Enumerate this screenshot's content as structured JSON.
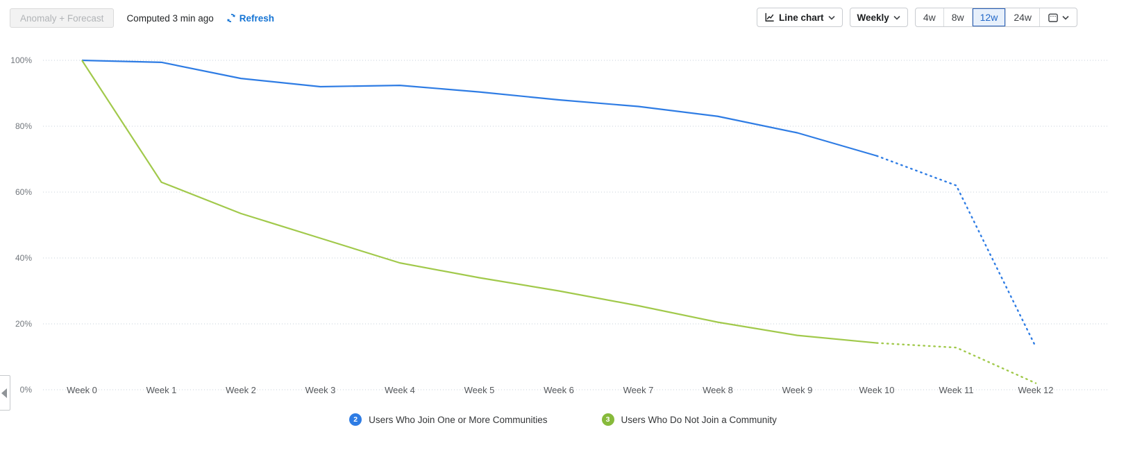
{
  "header": {
    "anomaly_button_label": "Anomaly + Forecast",
    "computed_text": "Computed 3 min ago",
    "refresh_label": "Refresh",
    "chart_type_label": "Line chart",
    "interval_label": "Weekly",
    "ranges": [
      "4w",
      "8w",
      "12w",
      "24w"
    ],
    "selected_range": "12w"
  },
  "colors": {
    "accent_blue": "#1574d4",
    "selected_range_bg": "#e7f0fb",
    "selected_range_border": "#2a61ba",
    "grid": "#c6cfd8"
  },
  "chart_data": {
    "type": "line",
    "title": "",
    "xlabel": "",
    "ylabel": "",
    "x": [
      "Week 0",
      "Week 1",
      "Week 2",
      "Week 3",
      "Week 4",
      "Week 5",
      "Week 6",
      "Week 7",
      "Week 8",
      "Week 9",
      "Week 10",
      "Week 11",
      "Week 12"
    ],
    "yticks": [
      {
        "label": "100%",
        "value": 100
      },
      {
        "label": "80%",
        "value": 80
      },
      {
        "label": "60%",
        "value": 60
      },
      {
        "label": "40%",
        "value": 40
      },
      {
        "label": "20%",
        "value": 20
      },
      {
        "label": "0%",
        "value": 0
      }
    ],
    "ylim": [
      0,
      100
    ],
    "grid": "dotted-horizontal",
    "legend_position": "bottom",
    "forecast_start_index": 10,
    "forecast_style": "dotted",
    "series": [
      {
        "name": "Users Who Join One or More Communities",
        "badge": "2",
        "color": "#2e7ce4",
        "badge_color": "#2e7ce4",
        "values": [
          100,
          99.4,
          94.5,
          92,
          92.4,
          90.4,
          88,
          86,
          83,
          78,
          71,
          62,
          13
        ]
      },
      {
        "name": "Users Who Do Not Join a Community",
        "badge": "3",
        "color": "#a1c94b",
        "badge_color": "#87ba3b",
        "values": [
          100,
          63,
          53.5,
          46,
          38.5,
          34,
          30,
          25.5,
          20.5,
          16.5,
          14.2,
          12.8,
          2
        ]
      }
    ]
  }
}
